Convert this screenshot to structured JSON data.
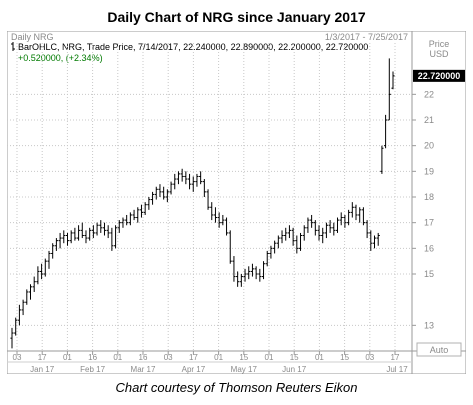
{
  "title": "Daily Chart of NRG since January 2017",
  "caption": "Chart courtesy of Thomson Reuters Eikon",
  "panel": {
    "name": "Daily NRG",
    "date_range": "1/3/2017 - 7/25/2017",
    "price_label": "Price",
    "currency": "USD",
    "info_line": "BarOHLC, NRG, Trade Price, 7/14/2017, 22.240000, 22.890000, 22.200000, 22.720000",
    "change_line": "+0.520000, (+2.34%)",
    "last_price_tag": "22.720000",
    "auto_label": "Auto"
  },
  "colors": {
    "accent": "#007a00",
    "bars": "#000000",
    "grid": "#c8c8c8",
    "tag_bg": "#000000",
    "tag_text": "#ffffff",
    "axis_text": "#8a8a8a"
  },
  "chart_data": {
    "type": "ohlc",
    "title": "Daily Chart of NRG since January 2017",
    "ylim": [
      12,
      24
    ],
    "y_ticks": [
      "13",
      "15",
      "16",
      "17",
      "18",
      "19",
      "20",
      "21",
      "22"
    ],
    "x_ticks": [
      "03",
      "17",
      "01",
      "16",
      "01",
      "16",
      "03",
      "17",
      "01",
      "15",
      "01",
      "15",
      "01",
      "15",
      "03",
      "17"
    ],
    "month_labels": [
      "Jan 17",
      "Feb 17",
      "Mar 17",
      "Apr 17",
      "May 17",
      "Jun 17",
      "Jul 17"
    ],
    "grid": true,
    "last": {
      "date": "7/14/2017",
      "open": 22.24,
      "high": 22.89,
      "low": 22.2,
      "close": 22.72,
      "change": 0.52,
      "change_pct": 2.34
    },
    "bars": [
      {
        "o": 12.5,
        "h": 12.9,
        "l": 12.1,
        "c": 12.7
      },
      {
        "o": 12.7,
        "h": 13.3,
        "l": 12.6,
        "c": 13.2
      },
      {
        "o": 13.2,
        "h": 13.8,
        "l": 13.0,
        "c": 13.6
      },
      {
        "o": 13.6,
        "h": 14.0,
        "l": 13.4,
        "c": 13.9
      },
      {
        "o": 13.9,
        "h": 14.4,
        "l": 13.8,
        "c": 14.3
      },
      {
        "o": 14.3,
        "h": 14.6,
        "l": 14.0,
        "c": 14.5
      },
      {
        "o": 14.5,
        "h": 14.9,
        "l": 14.3,
        "c": 14.7
      },
      {
        "o": 14.7,
        "h": 15.3,
        "l": 14.6,
        "c": 15.1
      },
      {
        "o": 15.1,
        "h": 15.4,
        "l": 14.8,
        "c": 15.0
      },
      {
        "o": 15.0,
        "h": 15.6,
        "l": 14.9,
        "c": 15.5
      },
      {
        "o": 15.5,
        "h": 15.9,
        "l": 15.2,
        "c": 15.8
      },
      {
        "o": 15.8,
        "h": 16.2,
        "l": 15.6,
        "c": 16.1
      },
      {
        "o": 16.1,
        "h": 16.4,
        "l": 15.9,
        "c": 16.3
      },
      {
        "o": 16.3,
        "h": 16.6,
        "l": 16.0,
        "c": 16.4
      },
      {
        "o": 16.4,
        "h": 16.7,
        "l": 16.2,
        "c": 16.5
      },
      {
        "o": 16.5,
        "h": 16.6,
        "l": 16.1,
        "c": 16.3
      },
      {
        "o": 16.3,
        "h": 16.7,
        "l": 16.2,
        "c": 16.6
      },
      {
        "o": 16.6,
        "h": 16.8,
        "l": 16.3,
        "c": 16.4
      },
      {
        "o": 16.4,
        "h": 16.9,
        "l": 16.3,
        "c": 16.7
      },
      {
        "o": 16.7,
        "h": 17.0,
        "l": 16.4,
        "c": 16.5
      },
      {
        "o": 16.5,
        "h": 16.7,
        "l": 16.2,
        "c": 16.4
      },
      {
        "o": 16.4,
        "h": 16.8,
        "l": 16.3,
        "c": 16.7
      },
      {
        "o": 16.7,
        "h": 16.9,
        "l": 16.4,
        "c": 16.6
      },
      {
        "o": 16.6,
        "h": 17.0,
        "l": 16.5,
        "c": 16.9
      },
      {
        "o": 16.9,
        "h": 17.1,
        "l": 16.6,
        "c": 16.8
      },
      {
        "o": 16.8,
        "h": 17.0,
        "l": 16.5,
        "c": 16.7
      },
      {
        "o": 16.7,
        "h": 16.9,
        "l": 16.4,
        "c": 16.6
      },
      {
        "o": 16.6,
        "h": 16.8,
        "l": 15.9,
        "c": 16.1
      },
      {
        "o": 16.1,
        "h": 16.9,
        "l": 16.0,
        "c": 16.8
      },
      {
        "o": 16.8,
        "h": 17.1,
        "l": 16.6,
        "c": 17.0
      },
      {
        "o": 17.0,
        "h": 17.2,
        "l": 16.8,
        "c": 17.1
      },
      {
        "o": 17.1,
        "h": 17.3,
        "l": 16.9,
        "c": 17.0
      },
      {
        "o": 17.0,
        "h": 17.4,
        "l": 16.9,
        "c": 17.3
      },
      {
        "o": 17.3,
        "h": 17.5,
        "l": 17.1,
        "c": 17.2
      },
      {
        "o": 17.2,
        "h": 17.6,
        "l": 17.0,
        "c": 17.5
      },
      {
        "o": 17.5,
        "h": 17.7,
        "l": 17.2,
        "c": 17.4
      },
      {
        "o": 17.4,
        "h": 17.8,
        "l": 17.3,
        "c": 17.7
      },
      {
        "o": 17.7,
        "h": 18.0,
        "l": 17.5,
        "c": 17.9
      },
      {
        "o": 17.9,
        "h": 18.2,
        "l": 17.7,
        "c": 18.1
      },
      {
        "o": 18.1,
        "h": 18.4,
        "l": 17.9,
        "c": 18.3
      },
      {
        "o": 18.3,
        "h": 18.5,
        "l": 18.0,
        "c": 18.2
      },
      {
        "o": 18.2,
        "h": 18.4,
        "l": 17.9,
        "c": 18.0
      },
      {
        "o": 18.0,
        "h": 18.3,
        "l": 17.8,
        "c": 18.2
      },
      {
        "o": 18.2,
        "h": 18.6,
        "l": 18.1,
        "c": 18.5
      },
      {
        "o": 18.5,
        "h": 18.9,
        "l": 18.3,
        "c": 18.7
      },
      {
        "o": 18.7,
        "h": 19.0,
        "l": 18.5,
        "c": 18.9
      },
      {
        "o": 18.9,
        "h": 19.1,
        "l": 18.6,
        "c": 18.8
      },
      {
        "o": 18.8,
        "h": 19.0,
        "l": 18.5,
        "c": 18.7
      },
      {
        "o": 18.7,
        "h": 18.9,
        "l": 18.3,
        "c": 18.5
      },
      {
        "o": 18.5,
        "h": 18.8,
        "l": 18.2,
        "c": 18.6
      },
      {
        "o": 18.6,
        "h": 18.9,
        "l": 18.4,
        "c": 18.8
      },
      {
        "o": 18.8,
        "h": 19.0,
        "l": 18.5,
        "c": 18.6
      },
      {
        "o": 18.6,
        "h": 18.7,
        "l": 18.0,
        "c": 18.2
      },
      {
        "o": 18.2,
        "h": 18.3,
        "l": 17.5,
        "c": 17.6
      },
      {
        "o": 17.6,
        "h": 17.8,
        "l": 17.1,
        "c": 17.3
      },
      {
        "o": 17.3,
        "h": 17.6,
        "l": 17.0,
        "c": 17.2
      },
      {
        "o": 17.2,
        "h": 17.4,
        "l": 16.8,
        "c": 17.0
      },
      {
        "o": 17.0,
        "h": 17.3,
        "l": 16.9,
        "c": 17.1
      },
      {
        "o": 17.1,
        "h": 17.2,
        "l": 16.5,
        "c": 16.6
      },
      {
        "o": 16.6,
        "h": 16.7,
        "l": 15.4,
        "c": 15.5
      },
      {
        "o": 15.5,
        "h": 15.7,
        "l": 14.7,
        "c": 14.9
      },
      {
        "o": 14.9,
        "h": 15.1,
        "l": 14.5,
        "c": 14.7
      },
      {
        "o": 14.7,
        "h": 15.0,
        "l": 14.5,
        "c": 14.9
      },
      {
        "o": 14.9,
        "h": 15.2,
        "l": 14.7,
        "c": 15.0
      },
      {
        "o": 15.0,
        "h": 15.3,
        "l": 14.8,
        "c": 15.1
      },
      {
        "o": 15.1,
        "h": 15.4,
        "l": 14.9,
        "c": 15.2
      },
      {
        "o": 15.2,
        "h": 15.3,
        "l": 14.8,
        "c": 15.0
      },
      {
        "o": 15.0,
        "h": 15.2,
        "l": 14.7,
        "c": 14.9
      },
      {
        "o": 14.9,
        "h": 15.5,
        "l": 14.8,
        "c": 15.4
      },
      {
        "o": 15.4,
        "h": 15.9,
        "l": 15.3,
        "c": 15.8
      },
      {
        "o": 15.8,
        "h": 16.1,
        "l": 15.6,
        "c": 16.0
      },
      {
        "o": 16.0,
        "h": 16.3,
        "l": 15.8,
        "c": 16.2
      },
      {
        "o": 16.2,
        "h": 16.5,
        "l": 16.0,
        "c": 16.4
      },
      {
        "o": 16.4,
        "h": 16.7,
        "l": 16.2,
        "c": 16.5
      },
      {
        "o": 16.5,
        "h": 16.8,
        "l": 16.3,
        "c": 16.6
      },
      {
        "o": 16.6,
        "h": 16.9,
        "l": 16.4,
        "c": 16.7
      },
      {
        "o": 16.7,
        "h": 16.8,
        "l": 16.1,
        "c": 16.3
      },
      {
        "o": 16.3,
        "h": 16.5,
        "l": 15.8,
        "c": 16.0
      },
      {
        "o": 16.0,
        "h": 16.6,
        "l": 15.9,
        "c": 16.5
      },
      {
        "o": 16.5,
        "h": 16.9,
        "l": 16.3,
        "c": 16.8
      },
      {
        "o": 16.8,
        "h": 17.2,
        "l": 16.6,
        "c": 17.1
      },
      {
        "o": 17.1,
        "h": 17.3,
        "l": 16.8,
        "c": 17.0
      },
      {
        "o": 17.0,
        "h": 17.1,
        "l": 16.5,
        "c": 16.7
      },
      {
        "o": 16.7,
        "h": 16.9,
        "l": 16.3,
        "c": 16.5
      },
      {
        "o": 16.5,
        "h": 16.8,
        "l": 16.2,
        "c": 16.6
      },
      {
        "o": 16.6,
        "h": 17.0,
        "l": 16.4,
        "c": 16.9
      },
      {
        "o": 16.9,
        "h": 17.1,
        "l": 16.6,
        "c": 16.8
      },
      {
        "o": 16.8,
        "h": 17.0,
        "l": 16.5,
        "c": 16.7
      },
      {
        "o": 16.7,
        "h": 17.2,
        "l": 16.6,
        "c": 17.1
      },
      {
        "o": 17.1,
        "h": 17.4,
        "l": 16.9,
        "c": 17.2
      },
      {
        "o": 17.2,
        "h": 17.3,
        "l": 16.8,
        "c": 17.0
      },
      {
        "o": 17.0,
        "h": 17.5,
        "l": 16.9,
        "c": 17.4
      },
      {
        "o": 17.4,
        "h": 17.8,
        "l": 17.2,
        "c": 17.6
      },
      {
        "o": 17.6,
        "h": 17.7,
        "l": 17.1,
        "c": 17.3
      },
      {
        "o": 17.3,
        "h": 17.6,
        "l": 17.0,
        "c": 17.5
      },
      {
        "o": 17.5,
        "h": 17.6,
        "l": 16.9,
        "c": 17.0
      },
      {
        "o": 17.0,
        "h": 17.1,
        "l": 16.4,
        "c": 16.6
      },
      {
        "o": 16.6,
        "h": 16.7,
        "l": 15.9,
        "c": 16.2
      },
      {
        "o": 16.2,
        "h": 16.5,
        "l": 16.0,
        "c": 16.4
      },
      {
        "o": 16.4,
        "h": 16.6,
        "l": 16.1,
        "c": 16.5
      },
      {
        "o": 19.0,
        "h": 20.0,
        "l": 18.9,
        "c": 19.9
      },
      {
        "o": 20.0,
        "h": 21.2,
        "l": 19.9,
        "c": 21.0
      },
      {
        "o": 21.0,
        "h": 23.4,
        "l": 21.0,
        "c": 22.0
      },
      {
        "o": 22.24,
        "h": 22.89,
        "l": 22.2,
        "c": 22.72
      }
    ]
  }
}
